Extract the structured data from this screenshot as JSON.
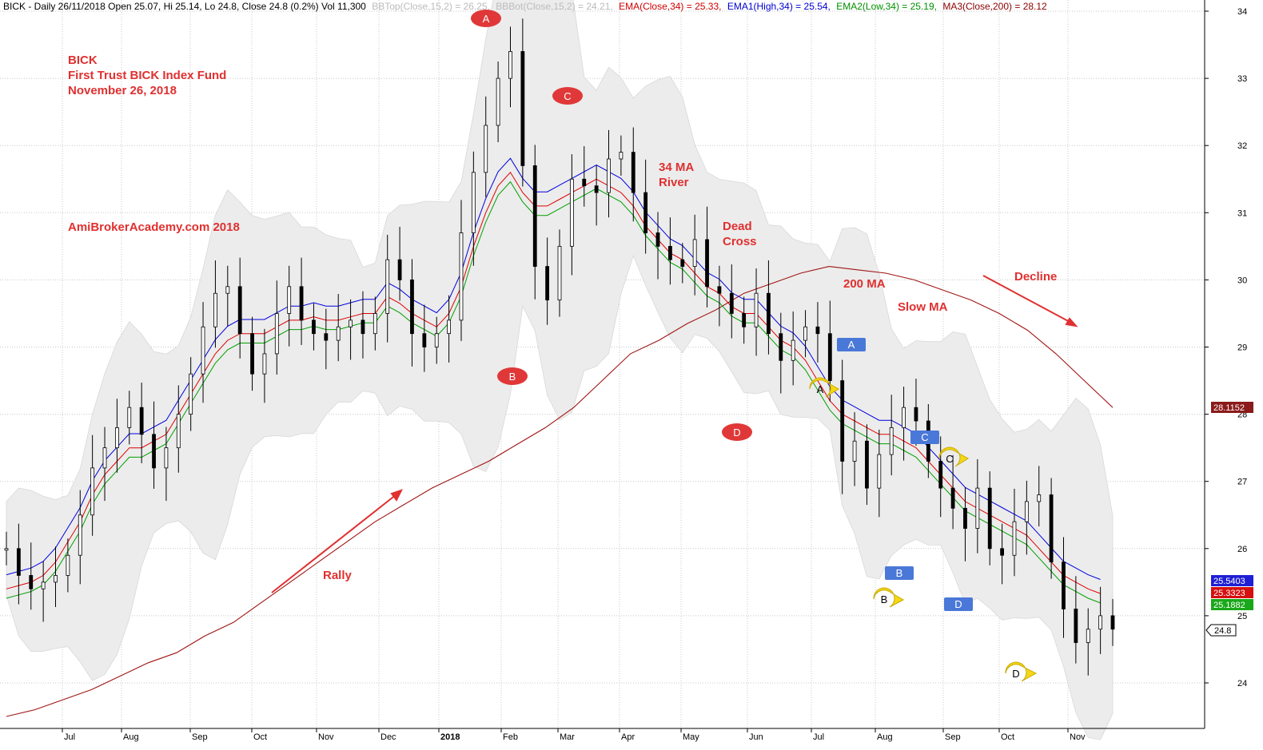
{
  "header": {
    "title": "BICK - Daily 26/11/2018 Open 25.07, Hi 25.14, Lo 24.8, Close 24.8 (0.2%) Vol 11,300",
    "bbtop": "BBTop(Close,15,2) = 26.25,",
    "bbbot": "BBBot(Close,15,2) = 24.21,",
    "ema": "EMA(Close,34) = 25.33,",
    "ema1": "EMA1(High,34) = 25.54,",
    "ema2": "EMA2(Low,34) = 25.19,",
    "ma3": "MA3(Close,200) = 28.12"
  },
  "annotations": {
    "title_lines": [
      "BICK",
      "First Trust BICK Index Fund",
      "November 26, 2018"
    ],
    "site": "AmiBrokerAcademy.com  2018",
    "river": [
      "34 MA",
      "River"
    ],
    "dead_cross": [
      "Dead",
      "Cross"
    ],
    "ma200": "200 MA",
    "slow_ma": "Slow MA",
    "decline": "Decline",
    "rally": "Rally"
  },
  "markers": {
    "red": [
      "A",
      "B",
      "C",
      "D"
    ],
    "blue": [
      "A",
      "B",
      "C",
      "D"
    ],
    "yellow": [
      "A",
      "B",
      "C",
      "D"
    ]
  },
  "price_tags": [
    {
      "label": "28.1152",
      "color": "#8b1a1a"
    },
    {
      "label": "25.5403",
      "color": "#1f1fd6"
    },
    {
      "label": "25.3323",
      "color": "#d60f0f"
    },
    {
      "label": "25.1882",
      "color": "#19a819"
    },
    {
      "label": "24.8",
      "color": "#000000"
    }
  ],
  "colors": {
    "ema_close": "#e00000",
    "ema_high": "#0000e0",
    "ema_low": "#00a000",
    "ma200": "#a01414",
    "bands": "#ececec",
    "annotation": "#e03030"
  },
  "chart_data": {
    "type": "candlestick",
    "title": "BICK - Daily 26/11/2018",
    "y_axis_ticks": [
      24,
      25,
      26,
      27,
      28,
      29,
      30,
      31,
      32,
      33,
      34
    ],
    "x_axis_ticks": [
      "Jul",
      "Aug",
      "Sep",
      "Oct",
      "Nov",
      "Dec",
      "2018",
      "Feb",
      "Mar",
      "Apr",
      "May",
      "Jun",
      "Jul",
      "Aug",
      "Sep",
      "Oct",
      "Nov"
    ],
    "ylim": [
      23.3,
      34.2
    ],
    "grid": true,
    "last_values": {
      "open": 25.07,
      "high": 25.14,
      "low": 24.8,
      "close": 24.8,
      "volume": 11300
    },
    "series": [
      {
        "name": "Close",
        "values": [
          26.0,
          25.6,
          25.4,
          25.5,
          25.6,
          25.9,
          26.5,
          27.2,
          27.5,
          27.8,
          28.1,
          27.7,
          27.2,
          27.5,
          28.0,
          28.6,
          29.3,
          29.8,
          29.9,
          29.2,
          28.6,
          28.9,
          29.5,
          29.9,
          29.4,
          29.2,
          29.1,
          29.3,
          29.4,
          29.2,
          29.5,
          30.3,
          30.0,
          29.2,
          29.0,
          29.2,
          29.4,
          30.7,
          31.6,
          32.3,
          33.0,
          33.4,
          31.7,
          30.2,
          29.7,
          30.5,
          31.5,
          31.4,
          31.3,
          31.8,
          31.9,
          31.3,
          30.7,
          30.5,
          30.3,
          30.2,
          30.6,
          29.9,
          29.8,
          29.5,
          29.3,
          29.8,
          29.2,
          28.8,
          29.1,
          29.3,
          29.2,
          28.5,
          27.3,
          27.6,
          26.9,
          27.4,
          27.8,
          28.1,
          27.9,
          27.3,
          26.9,
          26.6,
          26.3,
          26.9,
          26.0,
          25.9,
          26.4,
          26.7,
          26.8,
          25.8,
          25.1,
          24.6,
          24.8,
          25.0,
          24.8
        ]
      },
      {
        "name": "EMA(Close,34)",
        "values": [
          25.4,
          25.45,
          25.5,
          25.6,
          25.8,
          26.1,
          26.4,
          26.8,
          27.1,
          27.3,
          27.5,
          27.5,
          27.6,
          27.7,
          28.0,
          28.3,
          28.6,
          28.9,
          29.1,
          29.2,
          29.2,
          29.2,
          29.3,
          29.4,
          29.4,
          29.45,
          29.4,
          29.4,
          29.45,
          29.5,
          29.5,
          29.75,
          29.65,
          29.5,
          29.4,
          29.3,
          29.5,
          29.9,
          30.5,
          31.0,
          31.4,
          31.6,
          31.3,
          31.1,
          31.1,
          31.2,
          31.3,
          31.4,
          31.5,
          31.4,
          31.3,
          31.1,
          30.8,
          30.6,
          30.4,
          30.3,
          30.1,
          29.9,
          29.8,
          29.6,
          29.5,
          29.5,
          29.3,
          29.1,
          29.0,
          28.8,
          28.5,
          28.2,
          28.0,
          27.9,
          27.8,
          27.7,
          27.7,
          27.6,
          27.5,
          27.3,
          27.1,
          26.9,
          26.7,
          26.6,
          26.5,
          26.4,
          26.3,
          26.2,
          26.0,
          25.8,
          25.6,
          25.5,
          25.4,
          25.33
        ]
      },
      {
        "name": "MA3(Close,200)",
        "values": [
          23.5,
          23.6,
          23.75,
          23.9,
          24.1,
          24.3,
          24.45,
          24.7,
          24.9,
          25.2,
          25.5,
          25.8,
          26.1,
          26.4,
          26.65,
          26.9,
          27.1,
          27.3,
          27.55,
          27.8,
          28.1,
          28.5,
          28.9,
          29.1,
          29.35,
          29.55,
          29.8,
          29.95,
          30.1,
          30.2,
          30.15,
          30.1,
          30.0,
          29.85,
          29.7,
          29.5,
          29.25,
          28.9,
          28.5,
          28.1
        ]
      }
    ]
  }
}
